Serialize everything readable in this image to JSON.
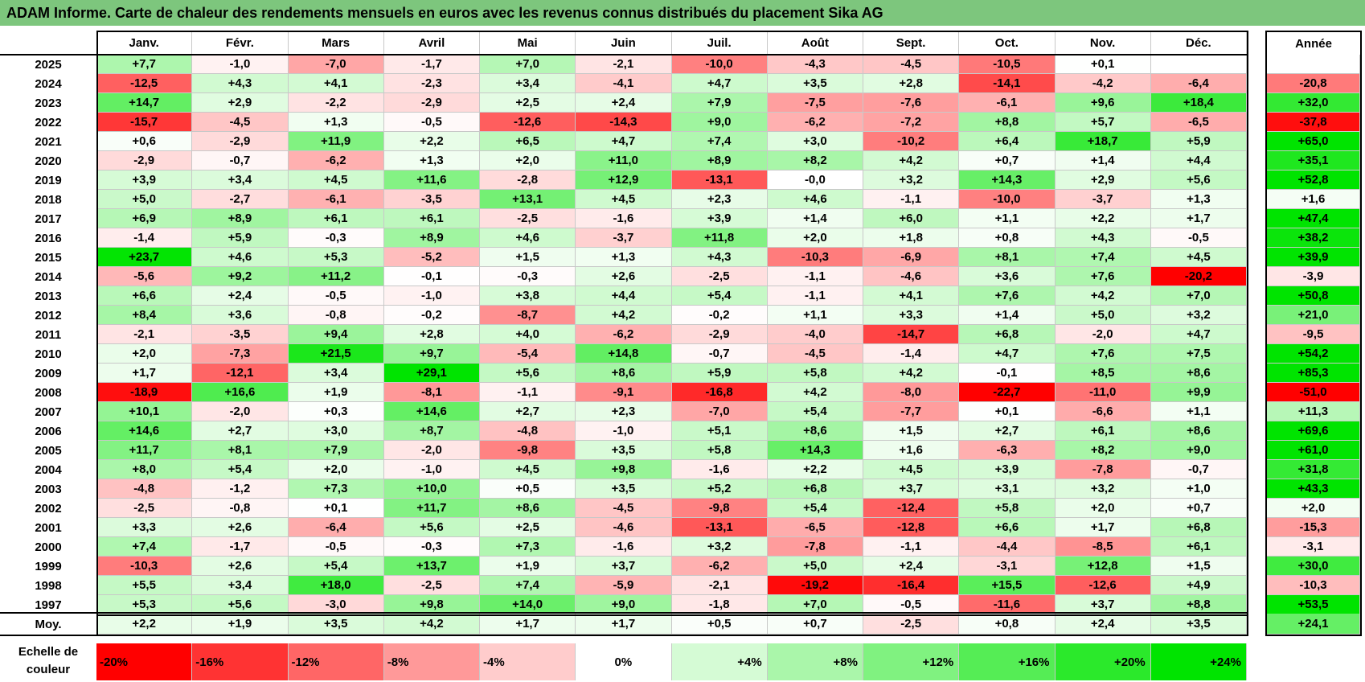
{
  "title": "ADAM Informe. Carte de chaleur des rendements mensuels en euros avec les revenus connus distribués du placement Sika AG",
  "chart_data": {
    "type": "heatmap",
    "months": [
      "Janv.",
      "Févr.",
      "Mars",
      "Avril",
      "Mai",
      "Juin",
      "Juil.",
      "Août",
      "Sept.",
      "Oct.",
      "Nov.",
      "Déc."
    ],
    "annual_header": "Année",
    "rows": [
      {
        "year": "2025",
        "values": [
          7.7,
          -1.0,
          -7.0,
          -1.7,
          7.0,
          -2.1,
          -10.0,
          -4.3,
          -4.5,
          -10.5,
          0.1,
          null
        ],
        "annual": null
      },
      {
        "year": "2024",
        "values": [
          -12.5,
          4.3,
          4.1,
          -2.3,
          3.4,
          -4.1,
          4.7,
          3.5,
          2.8,
          -14.1,
          -4.2,
          -6.4
        ],
        "annual": -20.8
      },
      {
        "year": "2023",
        "values": [
          14.7,
          2.9,
          -2.2,
          -2.9,
          2.5,
          2.4,
          7.9,
          -7.5,
          -7.6,
          -6.1,
          9.6,
          18.4
        ],
        "annual": 32.0
      },
      {
        "year": "2022",
        "values": [
          -15.7,
          -4.5,
          1.3,
          -0.5,
          -12.6,
          -14.3,
          9.0,
          -6.2,
          -7.2,
          8.8,
          5.7,
          -6.5
        ],
        "annual": -37.8
      },
      {
        "year": "2021",
        "values": [
          0.6,
          -2.9,
          11.9,
          2.2,
          6.5,
          4.7,
          7.4,
          3.0,
          -10.2,
          6.4,
          18.7,
          5.9
        ],
        "annual": 65.0
      },
      {
        "year": "2020",
        "values": [
          -2.9,
          -0.7,
          -6.2,
          1.3,
          2.0,
          11.0,
          8.9,
          8.2,
          4.2,
          0.7,
          1.4,
          4.4
        ],
        "annual": 35.1
      },
      {
        "year": "2019",
        "values": [
          3.9,
          3.4,
          4.5,
          11.6,
          -2.8,
          12.9,
          -13.1,
          "-0,0",
          3.2,
          14.3,
          2.9,
          5.6
        ],
        "annual": 52.8
      },
      {
        "year": "2018",
        "values": [
          5.0,
          -2.7,
          -6.1,
          -3.5,
          13.1,
          4.5,
          2.3,
          4.6,
          -1.1,
          -10.0,
          -3.7,
          1.3
        ],
        "annual": 1.6
      },
      {
        "year": "2017",
        "values": [
          6.9,
          8.9,
          6.1,
          6.1,
          -2.5,
          -1.6,
          3.9,
          1.4,
          6.0,
          1.1,
          2.2,
          1.7
        ],
        "annual": 47.4
      },
      {
        "year": "2016",
        "values": [
          -1.4,
          5.9,
          -0.3,
          8.9,
          4.6,
          -3.7,
          11.8,
          2.0,
          1.8,
          0.8,
          4.3,
          -0.5
        ],
        "annual": 38.2
      },
      {
        "year": "2015",
        "values": [
          23.7,
          4.6,
          5.3,
          -5.2,
          1.5,
          1.3,
          4.3,
          -10.3,
          -6.9,
          8.1,
          7.4,
          4.5
        ],
        "annual": 39.9
      },
      {
        "year": "2014",
        "values": [
          -5.6,
          9.2,
          11.2,
          -0.1,
          -0.3,
          2.6,
          -2.5,
          -1.1,
          -4.6,
          3.6,
          7.6,
          -20.2
        ],
        "annual": -3.9
      },
      {
        "year": "2013",
        "values": [
          6.6,
          2.4,
          -0.5,
          -1.0,
          3.8,
          4.4,
          5.4,
          -1.1,
          4.1,
          7.6,
          4.2,
          7.0
        ],
        "annual": 50.8
      },
      {
        "year": "2012",
        "values": [
          8.4,
          3.6,
          -0.8,
          -0.2,
          -8.7,
          4.2,
          -0.2,
          1.1,
          3.3,
          1.4,
          5.0,
          3.2
        ],
        "annual": 21.0
      },
      {
        "year": "2011",
        "values": [
          -2.1,
          -3.5,
          9.4,
          2.8,
          4.0,
          -6.2,
          -2.9,
          -4.0,
          -14.7,
          6.8,
          -2.0,
          4.7
        ],
        "annual": -9.5
      },
      {
        "year": "2010",
        "values": [
          2.0,
          -7.3,
          21.5,
          9.7,
          -5.4,
          14.8,
          -0.7,
          -4.5,
          -1.4,
          4.7,
          7.6,
          7.5
        ],
        "annual": 54.2
      },
      {
        "year": "2009",
        "values": [
          1.7,
          -12.1,
          3.4,
          29.1,
          5.6,
          8.6,
          5.9,
          5.8,
          4.2,
          -0.1,
          8.5,
          8.6
        ],
        "annual": 85.3
      },
      {
        "year": "2008",
        "values": [
          -18.9,
          16.6,
          1.9,
          -8.1,
          -1.1,
          -9.1,
          -16.8,
          4.2,
          -8.0,
          -22.7,
          -11.0,
          9.9
        ],
        "annual": -51.0
      },
      {
        "year": "2007",
        "values": [
          10.1,
          -2.0,
          0.3,
          14.6,
          2.7,
          2.3,
          -7.0,
          5.4,
          -7.7,
          0.1,
          -6.6,
          1.1
        ],
        "annual": 11.3
      },
      {
        "year": "2006",
        "values": [
          14.6,
          2.7,
          3.0,
          8.7,
          -4.8,
          -1.0,
          5.1,
          8.6,
          1.5,
          2.7,
          6.1,
          8.6
        ],
        "annual": 69.6
      },
      {
        "year": "2005",
        "values": [
          11.7,
          8.1,
          7.9,
          -2.0,
          -9.8,
          3.5,
          5.8,
          14.3,
          1.6,
          -6.3,
          8.2,
          9.0
        ],
        "annual": 61.0
      },
      {
        "year": "2004",
        "values": [
          8.0,
          5.4,
          2.0,
          -1.0,
          4.5,
          9.8,
          -1.6,
          2.2,
          4.5,
          3.9,
          -7.8,
          -0.7
        ],
        "annual": 31.8
      },
      {
        "year": "2003",
        "values": [
          -4.8,
          -1.2,
          7.3,
          10.0,
          0.5,
          3.5,
          5.2,
          6.8,
          3.7,
          3.1,
          3.2,
          1.0
        ],
        "annual": 43.3
      },
      {
        "year": "2002",
        "values": [
          -2.5,
          -0.8,
          0.1,
          11.7,
          8.6,
          -4.5,
          -9.8,
          5.4,
          -12.4,
          5.8,
          2.0,
          0.7
        ],
        "annual": 2.0
      },
      {
        "year": "2001",
        "values": [
          3.3,
          2.6,
          -6.4,
          5.6,
          2.5,
          -4.6,
          -13.1,
          -6.5,
          -12.8,
          6.6,
          1.7,
          6.8
        ],
        "annual": -15.3
      },
      {
        "year": "2000",
        "values": [
          7.4,
          -1.7,
          -0.5,
          -0.3,
          7.3,
          -1.6,
          3.2,
          -7.8,
          -1.1,
          -4.4,
          -8.5,
          6.1
        ],
        "annual": -3.1
      },
      {
        "year": "1999",
        "values": [
          -10.3,
          2.6,
          5.4,
          13.7,
          1.9,
          3.7,
          -6.2,
          5.0,
          2.4,
          -3.1,
          12.8,
          1.5
        ],
        "annual": 30.0
      },
      {
        "year": "1998",
        "values": [
          5.5,
          3.4,
          18.0,
          -2.5,
          7.4,
          -5.9,
          -2.1,
          -19.2,
          -16.4,
          15.5,
          -12.6,
          4.9
        ],
        "annual": -10.3
      },
      {
        "year": "1997",
        "values": [
          5.3,
          5.6,
          -3.0,
          9.8,
          14.0,
          9.0,
          -1.8,
          7.0,
          -0.5,
          -11.6,
          3.7,
          8.8
        ],
        "annual": 53.5
      }
    ],
    "average": {
      "label": "Moy.",
      "values": [
        2.2,
        1.9,
        3.5,
        4.2,
        1.7,
        1.7,
        0.5,
        0.7,
        -2.5,
        0.8,
        2.4,
        3.5
      ],
      "annual": 24.1
    },
    "color_scale": {
      "label_line1": "Echelle de",
      "label_line2": "couleur",
      "stops": [
        "-20%",
        "-16%",
        "-12%",
        "-8%",
        "-4%",
        "0%",
        "+4%",
        "+8%",
        "+12%",
        "+16%",
        "+20%",
        "+24%"
      ],
      "stop_values": [
        -20,
        -16,
        -12,
        -8,
        -4,
        0,
        4,
        8,
        12,
        16,
        20,
        24
      ],
      "negative_color": "#ff0000",
      "neutral_color": "#ffffff",
      "positive_color": "#00e400"
    }
  }
}
